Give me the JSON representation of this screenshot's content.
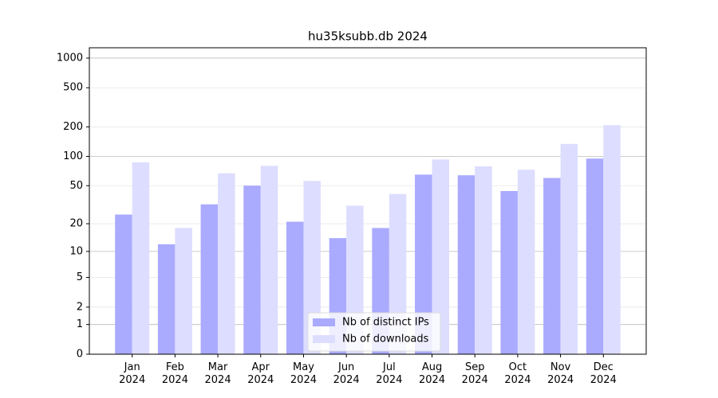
{
  "chart_data": {
    "type": "bar",
    "title": "hu35ksubb.db 2024",
    "categories": [
      "Jan 2024",
      "Feb 2024",
      "Mar 2024",
      "Apr 2024",
      "May 2024",
      "Jun 2024",
      "Jul 2024",
      "Aug 2024",
      "Sep 2024",
      "Oct 2024",
      "Nov 2024",
      "Dec 2024"
    ],
    "series": [
      {
        "name": "Nb of distinct IPs",
        "color": "#aaaaff",
        "values": [
          25,
          12,
          32,
          50,
          21,
          14,
          18,
          65,
          64,
          44,
          60,
          95
        ]
      },
      {
        "name": "Nb of downloads",
        "color": "#ddddff",
        "values": [
          87,
          18,
          67,
          80,
          56,
          31,
          41,
          93,
          79,
          73,
          134,
          208
        ]
      }
    ],
    "yscale": "symlog",
    "ylim": [
      0,
      1272
    ],
    "yticks": [
      0,
      1,
      2,
      5,
      10,
      20,
      50,
      100,
      200,
      500,
      1000
    ],
    "grid": true,
    "legend": "lower center"
  }
}
